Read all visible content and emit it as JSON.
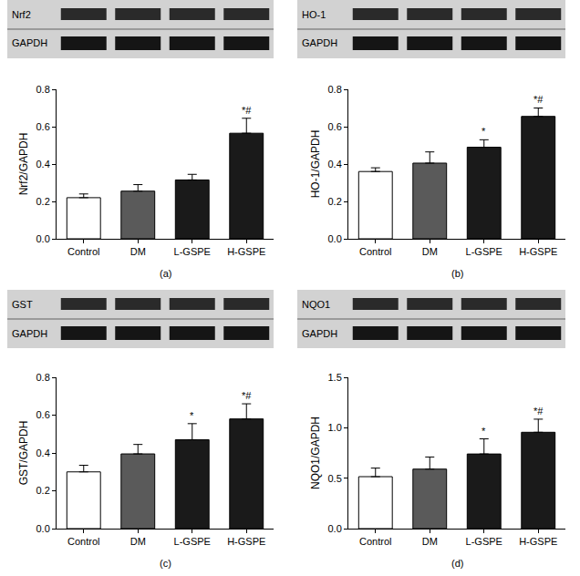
{
  "chart_data": [
    {
      "type": "bar",
      "title": "(a)",
      "blot_labels": [
        "Nrf2",
        "GAPDH"
      ],
      "y_label": "Nrf2/GAPDH",
      "categories": [
        "Control",
        "DM",
        "L-GSPE",
        "H-GSPE"
      ],
      "values": [
        0.22,
        0.255,
        0.315,
        0.565
      ],
      "errors": [
        0.02,
        0.035,
        0.03,
        0.08
      ],
      "colors": [
        "#ffffff",
        "#5a5a5a",
        "#1a1a1a",
        "#1a1a1a"
      ],
      "ylim": [
        0,
        0.8
      ],
      "yticks": [
        {
          "value": 0,
          "label": "0.0"
        },
        0.2,
        0.4,
        0.6,
        0.8
      ],
      "annotations": [
        {
          "category": "H-GSPE",
          "text": "*#"
        }
      ]
    },
    {
      "type": "bar",
      "title": "(b)",
      "blot_labels": [
        "HO-1",
        "GAPDH"
      ],
      "y_label": "HO-1/GAPDH",
      "categories": [
        "Control",
        "DM",
        "L-GSPE",
        "H-GSPE"
      ],
      "values": [
        0.36,
        0.405,
        0.49,
        0.655
      ],
      "errors": [
        0.02,
        0.06,
        0.04,
        0.045
      ],
      "colors": [
        "#ffffff",
        "#5a5a5a",
        "#1a1a1a",
        "#1a1a1a"
      ],
      "ylim": [
        0,
        0.8
      ],
      "yticks": [
        {
          "value": 0,
          "label": "0.0"
        },
        0.2,
        0.4,
        0.6,
        0.8
      ],
      "annotations": [
        {
          "category": "L-GSPE",
          "text": "*"
        },
        {
          "category": "H-GSPE",
          "text": "*#"
        }
      ]
    },
    {
      "type": "bar",
      "title": "(c)",
      "blot_labels": [
        "GST",
        "GAPDH"
      ],
      "y_label": "GST/GAPDH",
      "categories": [
        "Control",
        "DM",
        "L-GSPE",
        "H-GSPE"
      ],
      "values": [
        0.3,
        0.395,
        0.47,
        0.58
      ],
      "errors": [
        0.035,
        0.05,
        0.085,
        0.08
      ],
      "colors": [
        "#ffffff",
        "#5a5a5a",
        "#1a1a1a",
        "#1a1a1a"
      ],
      "ylim": [
        0,
        0.8
      ],
      "yticks": [
        {
          "value": 0,
          "label": "0.0"
        },
        0.2,
        0.4,
        0.6,
        0.8
      ],
      "annotations": [
        {
          "category": "L-GSPE",
          "text": "*"
        },
        {
          "category": "H-GSPE",
          "text": "*#"
        }
      ]
    },
    {
      "type": "bar",
      "title": "(d)",
      "blot_labels": [
        "NQO1",
        "GAPDH"
      ],
      "y_label": "NQO1/GAPDH",
      "categories": [
        "Control",
        "DM",
        "L-GSPE",
        "H-GSPE"
      ],
      "values": [
        0.515,
        0.59,
        0.74,
        0.955
      ],
      "errors": [
        0.085,
        0.12,
        0.15,
        0.13
      ],
      "colors": [
        "#ffffff",
        "#5a5a5a",
        "#1a1a1a",
        "#1a1a1a"
      ],
      "ylim": [
        0,
        1.5
      ],
      "yticks": [
        {
          "value": 0,
          "label": "0.0"
        },
        0.5,
        {
          "value": 1,
          "label": "1.0"
        },
        1.5
      ],
      "annotations": [
        {
          "category": "L-GSPE",
          "text": "*"
        },
        {
          "category": "H-GSPE",
          "text": "*#"
        }
      ]
    }
  ]
}
